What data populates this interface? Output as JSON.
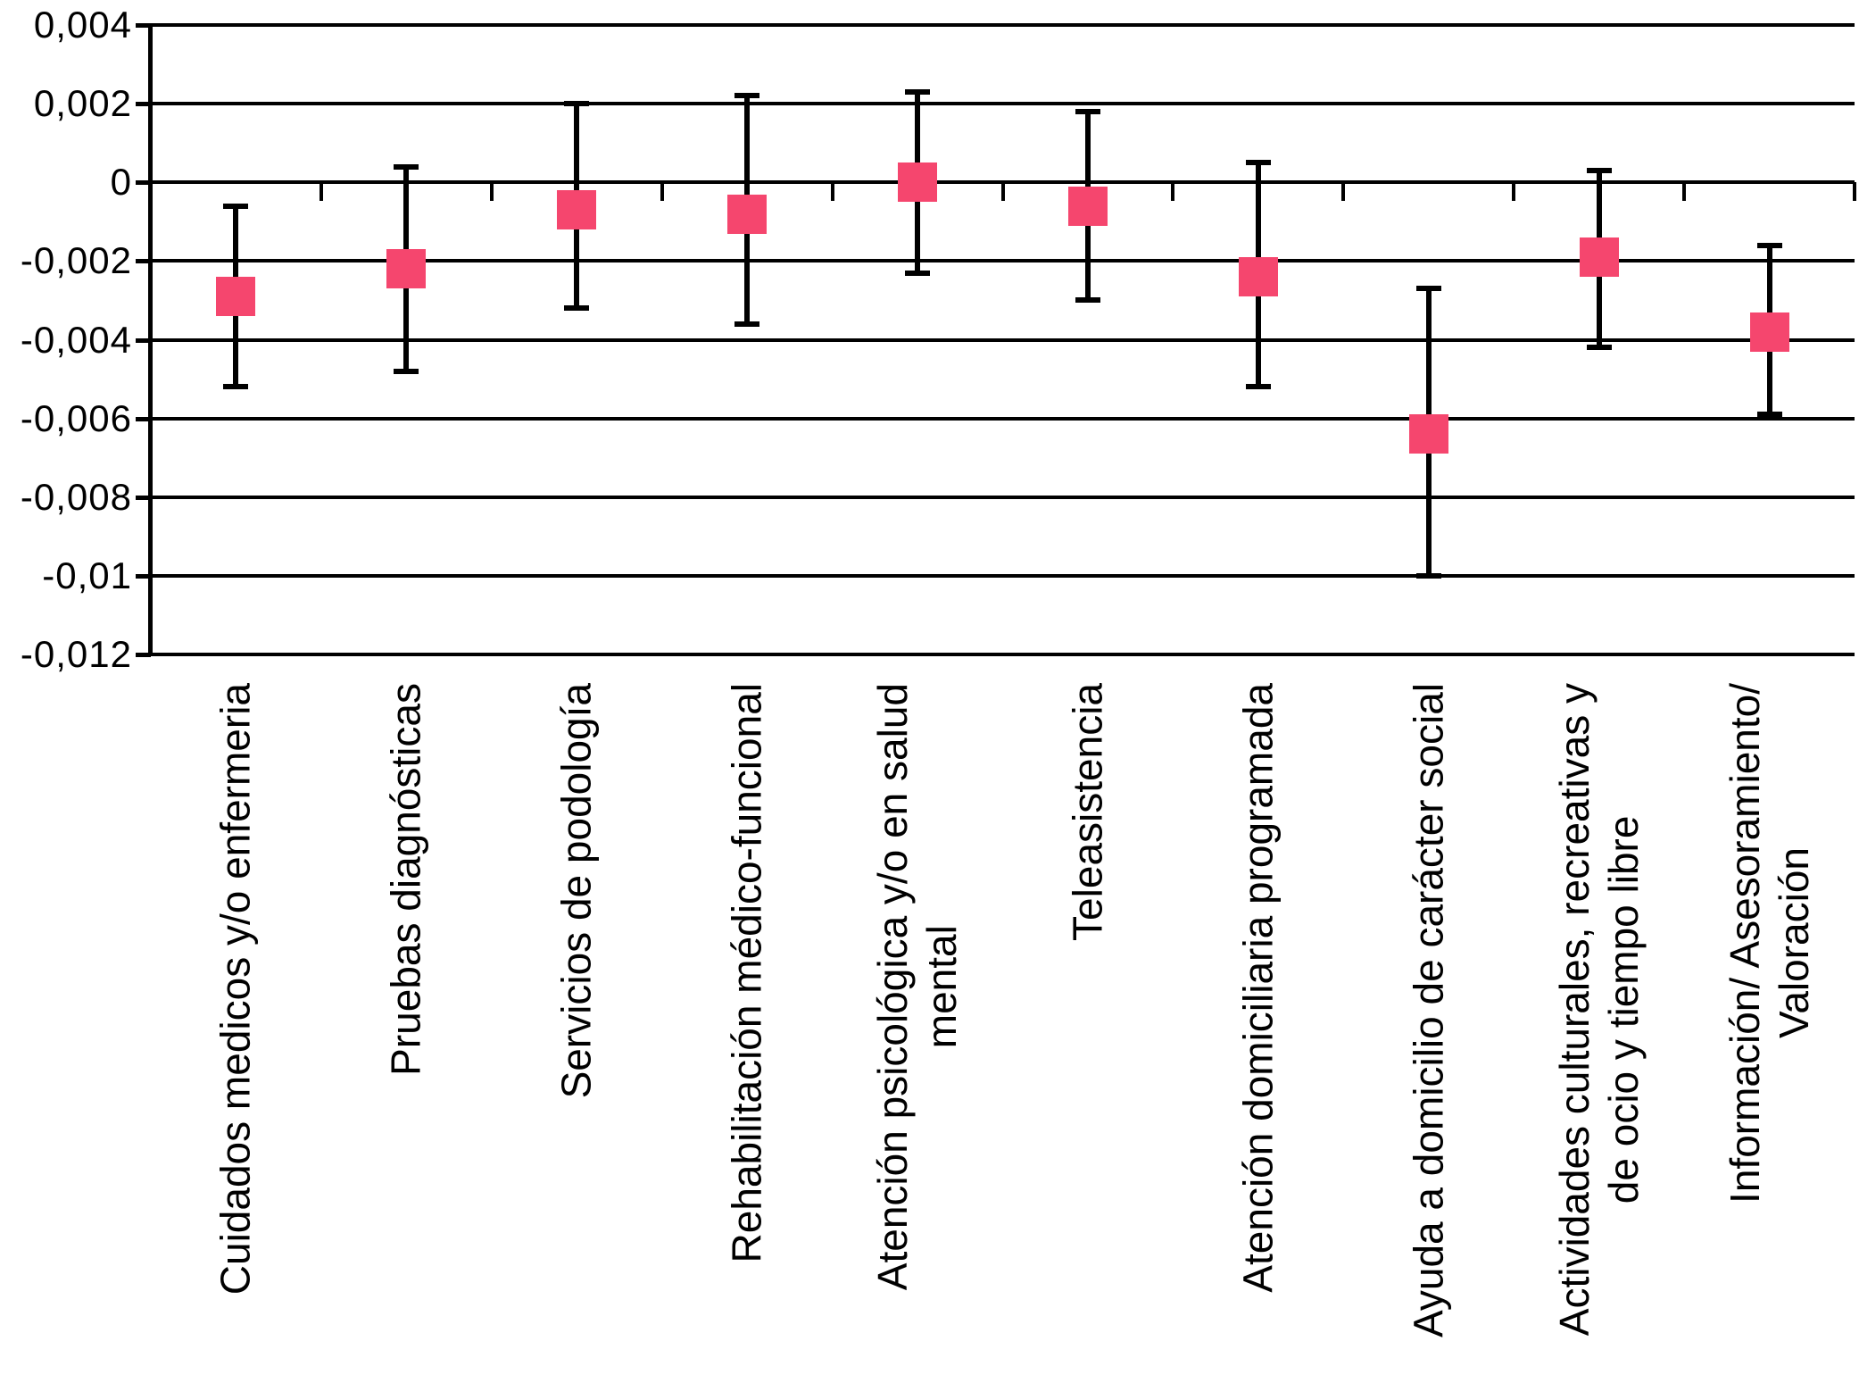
{
  "chart_data": {
    "type": "scatter",
    "subtype": "point-estimates-with-error-bars",
    "title": "",
    "xlabel": "",
    "ylabel": "",
    "grid": true,
    "legend": false,
    "decimal_separator": ",",
    "marker_shape": "square",
    "marker_color": "#F5466E",
    "line_color": "#000000",
    "ylim": [
      -0.012,
      0.004
    ],
    "yticks": [
      0.004,
      0.002,
      0,
      -0.002,
      -0.004,
      -0.006,
      -0.008,
      -0.01,
      -0.012
    ],
    "ytick_labels": [
      "0,004",
      "0,002",
      "0",
      "-0,002",
      "-0,004",
      "-0,006",
      "-0,008",
      "-0,01",
      "-0,012"
    ],
    "categories": [
      "Cuidados medicos y/o enfermeria",
      "Pruebas diagnósticas",
      "Servicios de podología",
      "Rehabilitación médico-funcional",
      "Atención psicológica y/o en salud\nmental",
      "Teleasistencia",
      "Atención domiciliaria programada",
      "Ayuda a domicilio de carácter social",
      "Actividades culturales, recreativas y\nde ocio y tiempo libre",
      "Información/ Asesoramiento/\nValoración"
    ],
    "series": [
      {
        "name": "",
        "values": [
          -0.0029,
          -0.0022,
          -0.0007,
          -0.0008,
          0.0,
          -0.0006,
          -0.0024,
          -0.0064,
          -0.0019,
          -0.0038
        ],
        "ci_high": [
          -0.0006,
          0.0004,
          0.002,
          0.0022,
          0.0023,
          0.0018,
          0.0005,
          -0.0027,
          0.0003,
          -0.0016
        ],
        "ci_low": [
          -0.0052,
          -0.0048,
          -0.0032,
          -0.0036,
          -0.0023,
          -0.003,
          -0.0052,
          -0.01,
          -0.0042,
          -0.0059
        ]
      }
    ]
  }
}
